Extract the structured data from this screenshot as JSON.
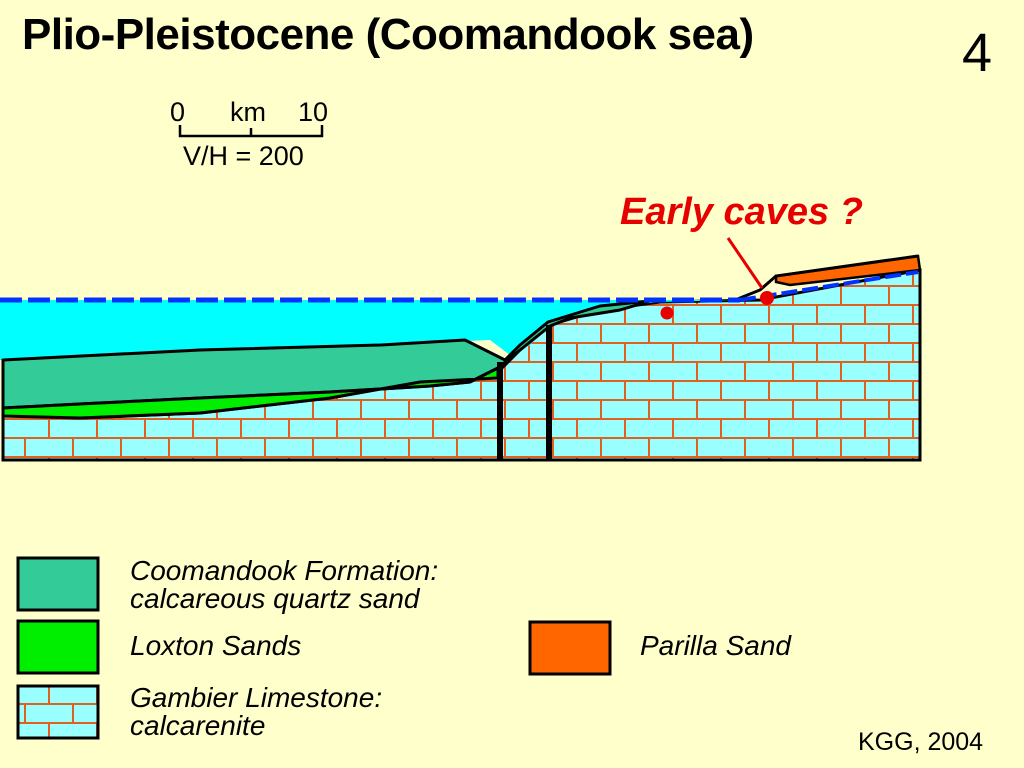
{
  "title": "Plio-Pleistocene (Coomandook sea)",
  "slide_number": "4",
  "scale_bar": {
    "zero": "0",
    "unit": "km",
    "ten": "10",
    "exaggeration": "V/H = 200"
  },
  "annotation": {
    "text": "Early caves ?",
    "color": "#E60000"
  },
  "legend": [
    {
      "name": "coomandook",
      "line1": "Coomandook Formation:",
      "line2": "calcareous quartz sand",
      "color": "#33CC99"
    },
    {
      "name": "loxton",
      "line1": "Loxton Sands",
      "line2": "",
      "color": "#00EE00"
    },
    {
      "name": "gambier",
      "line1": "Gambier Limestone:",
      "line2": "calcarenite",
      "color": "#99FFFF",
      "brick_color": "#E06020"
    },
    {
      "name": "parilla",
      "line1": "Parilla Sand",
      "line2": "",
      "color": "#FF6600"
    }
  ],
  "colors": {
    "background": "#FFFFCC",
    "sea": "#00FFFF",
    "sea_level": "#0033FF"
  },
  "credit": "KGG, 2004"
}
